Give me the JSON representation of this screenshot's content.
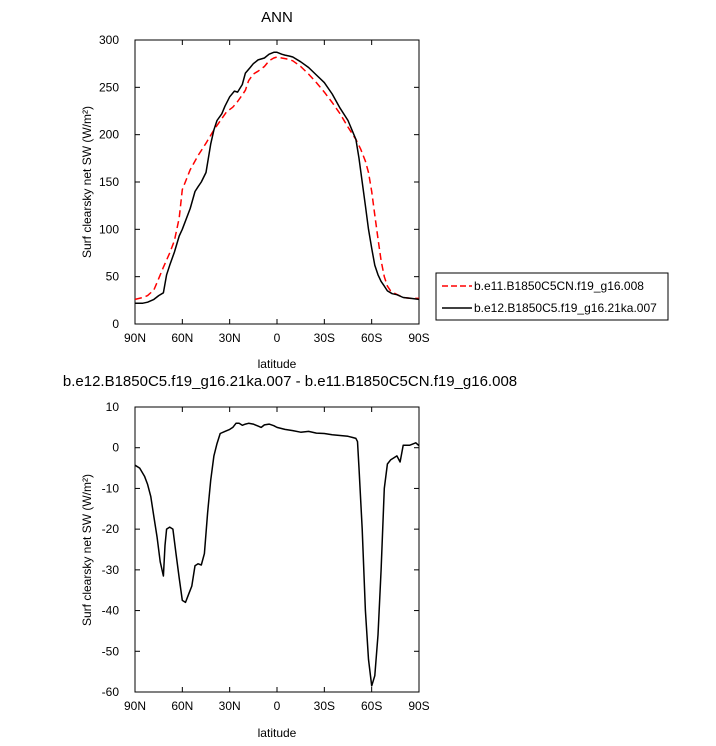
{
  "chart_data": [
    {
      "type": "line",
      "title": "ANN",
      "xlabel": "latitude",
      "ylabel": "Surf clearsky net SW (W/m²)",
      "xlim": [
        90,
        -90
      ],
      "ylim": [
        0,
        300
      ],
      "x_ticks": [
        90,
        60,
        30,
        0,
        -30,
        -60,
        -90
      ],
      "x_tick_labels": [
        "90N",
        "60N",
        "30N",
        "0",
        "30S",
        "60S",
        "90S"
      ],
      "y_ticks": [
        0,
        50,
        100,
        150,
        200,
        250,
        300
      ],
      "y_tick_labels": [
        "0",
        "50",
        "100",
        "150",
        "200",
        "250",
        "300"
      ],
      "grid": false,
      "legend": "right",
      "series": [
        {
          "name": "b.e11.B1850C5CN.f19_g16.008",
          "color": "#ff0000",
          "dash": "dashed",
          "x": [
            90,
            85,
            82,
            78,
            75,
            72,
            68,
            65,
            62,
            60,
            55,
            50,
            45,
            40,
            35,
            32,
            28,
            25,
            22,
            20,
            18,
            15,
            12,
            8,
            5,
            2,
            0,
            -3,
            -6,
            -10,
            -15,
            -20,
            -25,
            -30,
            -35,
            -40,
            -45,
            -50,
            -53,
            -56,
            -58,
            -60,
            -62,
            -64,
            -66,
            -68,
            -70,
            -72,
            -75,
            -80,
            -85,
            -90
          ],
          "y": [
            26,
            28,
            30,
            36,
            48,
            60,
            75,
            88,
            112,
            142,
            163,
            178,
            191,
            205,
            217,
            224,
            229,
            235,
            242,
            247,
            257,
            264,
            267,
            272,
            278,
            281,
            282,
            281,
            280,
            278,
            272,
            264,
            255,
            245,
            234,
            222,
            208,
            195,
            185,
            172,
            160,
            140,
            115,
            90,
            67,
            50,
            40,
            35,
            32,
            28,
            27,
            27
          ]
        },
        {
          "name": "b.e12.B1850C5.f19_g16.21ka.007",
          "color": "#000000",
          "dash": "solid",
          "x": [
            90,
            85,
            82,
            78,
            75,
            72,
            70,
            68,
            65,
            62,
            60,
            55,
            52,
            50,
            48,
            45,
            42,
            40,
            38,
            35,
            33,
            30,
            27,
            25,
            22,
            20,
            17,
            15,
            12,
            8,
            5,
            2,
            0,
            -3,
            -5,
            -8,
            -10,
            -15,
            -20,
            -25,
            -30,
            -35,
            -40,
            -45,
            -50,
            -52,
            -54,
            -56,
            -58,
            -60,
            -62,
            -64,
            -66,
            -68,
            -70,
            -73,
            -76,
            -80,
            -85,
            -90
          ],
          "y": [
            22,
            22,
            23,
            26,
            30,
            33,
            52,
            62,
            76,
            93,
            100,
            122,
            140,
            145,
            150,
            160,
            190,
            205,
            215,
            222,
            230,
            240,
            246,
            245,
            253,
            265,
            271,
            275,
            279,
            281,
            285,
            287,
            287,
            285,
            284,
            283,
            282,
            277,
            271,
            263,
            255,
            243,
            228,
            215,
            195,
            175,
            150,
            125,
            100,
            80,
            62,
            52,
            45,
            40,
            35,
            32,
            31,
            28,
            27,
            26
          ]
        }
      ]
    },
    {
      "type": "line",
      "title": "b.e12.B1850C5.f19_g16.21ka.007 - b.e11.B1850C5CN.f19_g16.008",
      "xlabel": "latitude",
      "ylabel": "Surf clearsky net SW (W/m²)",
      "xlim": [
        90,
        -90
      ],
      "ylim": [
        -60,
        10
      ],
      "x_ticks": [
        90,
        60,
        30,
        0,
        -30,
        -60,
        -90
      ],
      "x_tick_labels": [
        "90N",
        "60N",
        "30N",
        "0",
        "30S",
        "60S",
        "90S"
      ],
      "y_ticks": [
        -60,
        -50,
        -40,
        -30,
        -20,
        -10,
        0,
        10
      ],
      "y_tick_labels": [
        "-60",
        "-50",
        "-40",
        "-30",
        "-20",
        "-10",
        "0",
        "10"
      ],
      "grid": false,
      "series": [
        {
          "color": "#000000",
          "dash": "solid",
          "x": [
            90,
            87,
            84,
            82,
            80,
            78,
            76,
            74,
            72,
            71,
            70,
            68,
            66,
            64,
            62,
            60,
            58,
            56,
            54,
            52,
            50,
            48,
            46,
            44,
            42,
            40,
            38,
            36,
            33,
            30,
            28,
            26,
            24,
            22,
            20,
            18,
            15,
            12,
            10,
            8,
            5,
            2,
            0,
            -5,
            -10,
            -15,
            -20,
            -25,
            -30,
            -35,
            -40,
            -45,
            -48,
            -50,
            -51,
            -52,
            -54,
            -56,
            -58,
            -60,
            -62,
            -64,
            -66,
            -68,
            -70,
            -72,
            -74,
            -76,
            -78,
            -80,
            -84,
            -88,
            -90
          ],
          "y": [
            -4.3,
            -5,
            -7,
            -9,
            -12,
            -17,
            -22,
            -28,
            -31.5,
            -24,
            -20,
            -19.5,
            -20,
            -26,
            -32,
            -37.5,
            -38,
            -36,
            -34,
            -29,
            -28.5,
            -28.8,
            -26,
            -16,
            -8,
            -2,
            1,
            3.5,
            4,
            4.5,
            5,
            6,
            6,
            5.5,
            5.8,
            6,
            5.8,
            5.3,
            5,
            5.6,
            5.8,
            5.4,
            5,
            4.5,
            4.2,
            3.8,
            4,
            3.6,
            3.5,
            3.2,
            3,
            2.8,
            2.5,
            2.3,
            1.5,
            -5,
            -20,
            -40,
            -52,
            -58.5,
            -56,
            -46,
            -30,
            -10,
            -4,
            -3,
            -2.5,
            -2,
            -3.5,
            0.6,
            0.6,
            1.2,
            0.5
          ]
        }
      ]
    }
  ]
}
